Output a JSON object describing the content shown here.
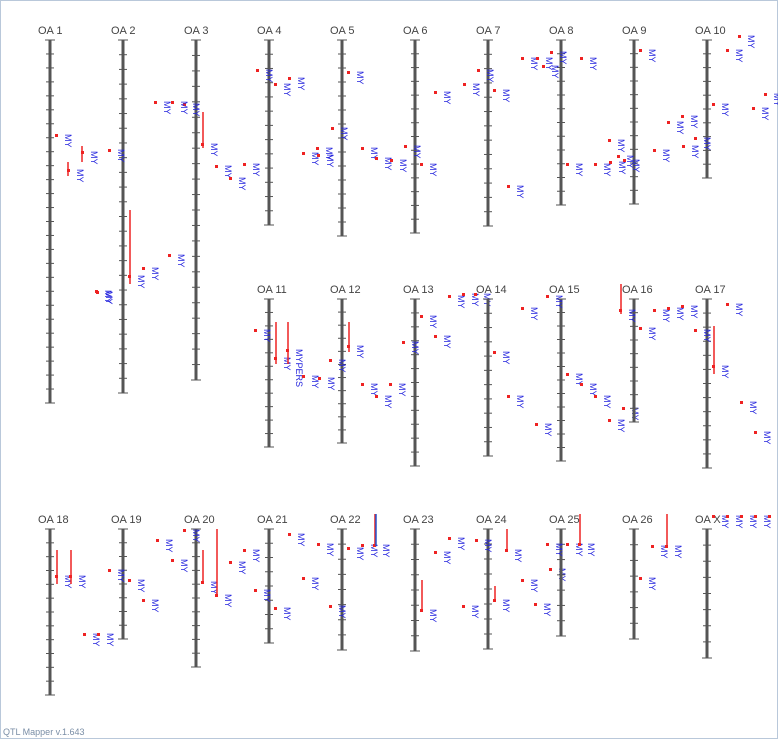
{
  "app": {
    "version_text": "QTL Mapper v.1.643"
  },
  "colors": {
    "chromosome": "#555555",
    "qtl_interval": "#ee2222",
    "qtl_interval_alt": "#2255cc",
    "qtl_marker": "#ee2222",
    "qtl_text": "#2222dd",
    "label_text": "#444444"
  },
  "chromosomes": [
    {
      "name": "OA 1",
      "ticks": 26,
      "qtls": [
        {
          "label": "MY"
        },
        {
          "label": "MY"
        },
        {
          "label": "MY"
        },
        {
          "label": "MY"
        }
      ]
    },
    {
      "name": "OA 2",
      "ticks": 24,
      "qtls": [
        {
          "label": "MY"
        },
        {
          "label": "MY"
        },
        {
          "label": "MY"
        },
        {
          "label": "MY"
        },
        {
          "label": "MY"
        },
        {
          "label": "MY"
        }
      ]
    },
    {
      "name": "OA 3",
      "ticks": 22,
      "qtls": [
        {
          "label": "MY"
        },
        {
          "label": "MY"
        },
        {
          "label": "MY"
        },
        {
          "label": "MY"
        },
        {
          "label": "MY"
        },
        {
          "label": "MY"
        }
      ]
    },
    {
      "name": "OA 4",
      "ticks": 13,
      "qtls": [
        {
          "label": "MY"
        },
        {
          "label": "MY"
        },
        {
          "label": "MY"
        },
        {
          "label": "MY"
        },
        {
          "label": "MY"
        }
      ]
    },
    {
      "name": "OA 5",
      "ticks": 14,
      "qtls": [
        {
          "label": "MY"
        },
        {
          "label": "MY"
        },
        {
          "label": "MY"
        },
        {
          "label": "MY"
        },
        {
          "label": "MY"
        }
      ]
    },
    {
      "name": "OA 6",
      "ticks": 14,
      "qtls": [
        {
          "label": "MY"
        },
        {
          "label": "MY"
        },
        {
          "label": "MY"
        },
        {
          "label": "MY"
        }
      ]
    },
    {
      "name": "OA 7",
      "ticks": 13,
      "qtls": [
        {
          "label": "MY"
        },
        {
          "label": "MY"
        },
        {
          "label": "MY"
        },
        {
          "label": "MY"
        },
        {
          "label": "MY"
        }
      ]
    },
    {
      "name": "OA 8",
      "ticks": 12,
      "qtls": [
        {
          "label": "MY"
        },
        {
          "label": "MY"
        },
        {
          "label": "MY"
        },
        {
          "label": "MY"
        },
        {
          "label": "MY"
        },
        {
          "label": "MY"
        },
        {
          "label": "MY"
        }
      ]
    },
    {
      "name": "OA 9",
      "ticks": 12,
      "qtls": [
        {
          "label": "MY"
        },
        {
          "label": "MY"
        },
        {
          "label": "MY"
        },
        {
          "label": "MY"
        },
        {
          "label": "MY"
        },
        {
          "label": "MY"
        },
        {
          "label": "MY"
        }
      ]
    },
    {
      "name": "OA 10",
      "ticks": 10,
      "qtls": [
        {
          "label": "MY"
        },
        {
          "label": "MY"
        },
        {
          "label": "MY"
        },
        {
          "label": "MY"
        },
        {
          "label": "MY"
        },
        {
          "label": "MY"
        },
        {
          "label": "MY"
        }
      ]
    },
    {
      "name": "OA 11",
      "ticks": 11,
      "qtls": [
        {
          "label": "MY"
        },
        {
          "label": "MY"
        },
        {
          "label": "MYPERS"
        },
        {
          "label": "MY"
        },
        {
          "label": "MY"
        }
      ]
    },
    {
      "name": "OA 12",
      "ticks": 11,
      "qtls": [
        {
          "label": "MY"
        },
        {
          "label": "MY"
        },
        {
          "label": "MY"
        },
        {
          "label": "MY"
        },
        {
          "label": "MY"
        }
      ]
    },
    {
      "name": "OA 13",
      "ticks": 12,
      "qtls": [
        {
          "label": "MY"
        },
        {
          "label": "MY"
        },
        {
          "label": "MY"
        },
        {
          "label": "MY"
        },
        {
          "label": "MY"
        },
        {
          "label": "MY"
        }
      ]
    },
    {
      "name": "OA 14",
      "ticks": 11,
      "qtls": [
        {
          "label": "MY"
        },
        {
          "label": "MY"
        },
        {
          "label": "MY"
        },
        {
          "label": "MY"
        }
      ]
    },
    {
      "name": "OA 15",
      "ticks": 12,
      "qtls": [
        {
          "label": "MY"
        },
        {
          "label": "MY"
        },
        {
          "label": "MY"
        },
        {
          "label": "MY"
        },
        {
          "label": "MY"
        },
        {
          "label": "MY"
        }
      ]
    },
    {
      "name": "OA 16",
      "ticks": 9,
      "qtls": [
        {
          "label": "MY"
        },
        {
          "label": "MY"
        },
        {
          "label": "MY"
        },
        {
          "label": "MY"
        },
        {
          "label": "MY"
        }
      ]
    },
    {
      "name": "OA 17",
      "ticks": 12,
      "qtls": [
        {
          "label": "MY"
        },
        {
          "label": "MY"
        },
        {
          "label": "MY"
        },
        {
          "label": "MY"
        },
        {
          "label": "MY"
        }
      ]
    },
    {
      "name": "OA 18",
      "ticks": 12,
      "qtls": [
        {
          "label": "MY"
        },
        {
          "label": "MY"
        },
        {
          "label": "MY"
        },
        {
          "label": "MY"
        }
      ]
    },
    {
      "name": "OA 19",
      "ticks": 8,
      "qtls": [
        {
          "label": "MY"
        },
        {
          "label": "MY"
        },
        {
          "label": "MY"
        },
        {
          "label": "MY"
        }
      ]
    },
    {
      "name": "OA 20",
      "ticks": 10,
      "qtls": [
        {
          "label": "MY"
        },
        {
          "label": "MY"
        },
        {
          "label": "MY"
        },
        {
          "label": "MY"
        },
        {
          "label": "MY"
        },
        {
          "label": "MY"
        }
      ]
    },
    {
      "name": "OA 21",
      "ticks": 8,
      "qtls": [
        {
          "label": "MY"
        },
        {
          "label": "MY"
        },
        {
          "label": "MY"
        },
        {
          "label": "MY"
        }
      ]
    },
    {
      "name": "OA 22",
      "ticks": 8,
      "qtls": [
        {
          "label": "MY"
        },
        {
          "label": "MY"
        },
        {
          "label": "MY"
        },
        {
          "label": "MY"
        },
        {
          "label": "MY"
        }
      ]
    },
    {
      "name": "OA 23",
      "ticks": 8,
      "qtls": [
        {
          "label": "MY"
        },
        {
          "label": "MY"
        },
        {
          "label": "MY"
        },
        {
          "label": "MY"
        }
      ]
    },
    {
      "name": "OA 24",
      "ticks": 8,
      "qtls": [
        {
          "label": "MY"
        },
        {
          "label": "MY"
        },
        {
          "label": "MY"
        },
        {
          "label": "MY"
        },
        {
          "label": "MY"
        }
      ]
    },
    {
      "name": "OA 25",
      "ticks": 7,
      "qtls": [
        {
          "label": "MY"
        },
        {
          "label": "MY"
        },
        {
          "label": "MY"
        },
        {
          "label": "MY"
        }
      ]
    },
    {
      "name": "OA 26",
      "ticks": 7,
      "qtls": [
        {
          "label": "MY"
        },
        {
          "label": "MY"
        },
        {
          "label": "MY"
        }
      ]
    },
    {
      "name": "OA X",
      "ticks": 8,
      "qtls": [
        {
          "label": "MY"
        },
        {
          "label": "MY"
        },
        {
          "label": "MY"
        },
        {
          "label": "MY"
        },
        {
          "label": "MY"
        }
      ]
    }
  ]
}
